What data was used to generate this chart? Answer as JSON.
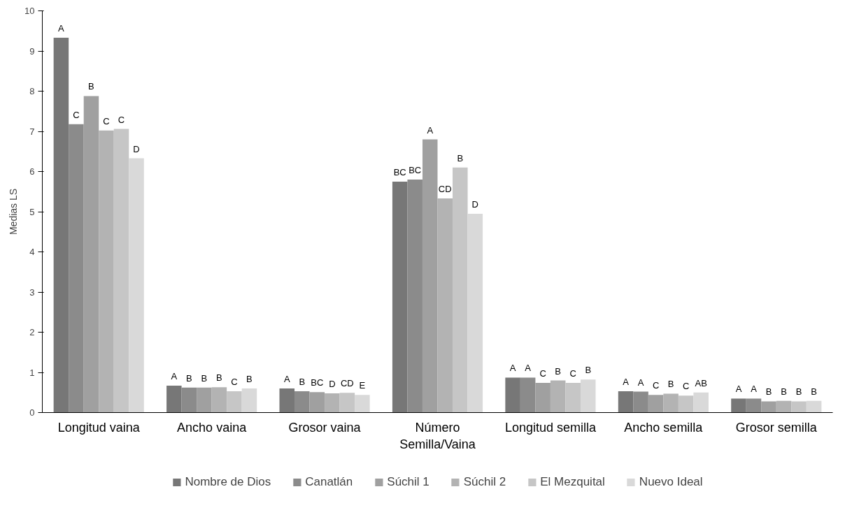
{
  "chart_data": {
    "type": "bar",
    "ylabel": "Medias LS",
    "categories": [
      "Longitud vaina",
      "Ancho vaina",
      "Grosor vaina",
      "Número\nSemilla/Vaina",
      "Longitud semilla",
      "Ancho semilla",
      "Grosor semilla"
    ],
    "series": [
      {
        "name": "Nombre de Dios",
        "color": "#777777",
        "values": [
          9.33,
          0.67,
          0.6,
          5.75,
          0.87,
          0.53,
          0.35
        ],
        "value_labels": [
          "A",
          "A",
          "A",
          "BC",
          "A",
          "A",
          "A"
        ]
      },
      {
        "name": "Canatlán",
        "color": "#8b8b8b",
        "values": [
          7.18,
          0.62,
          0.53,
          5.8,
          0.87,
          0.52,
          0.35
        ],
        "value_labels": [
          "C",
          "B",
          "B",
          "BC",
          "A",
          "A",
          "A"
        ]
      },
      {
        "name": "Súchil 1",
        "color": "#a0a0a0",
        "values": [
          7.88,
          0.62,
          0.51,
          6.8,
          0.74,
          0.44,
          0.28
        ],
        "value_labels": [
          "B",
          "B",
          "BC",
          "A",
          "C",
          "C",
          "B"
        ]
      },
      {
        "name": "Súchil 2",
        "color": "#b3b3b3",
        "values": [
          7.02,
          0.63,
          0.48,
          5.33,
          0.8,
          0.47,
          0.29
        ],
        "value_labels": [
          "C",
          "B",
          "D",
          "CD",
          "B",
          "B",
          "B"
        ]
      },
      {
        "name": "El Mezquital",
        "color": "#c6c6c6",
        "values": [
          7.06,
          0.53,
          0.49,
          6.1,
          0.74,
          0.42,
          0.28
        ],
        "value_labels": [
          "C",
          "C",
          "CD",
          "B",
          "C",
          "C",
          "B"
        ]
      },
      {
        "name": "Nuevo Ideal",
        "color": "#d9d9d9",
        "values": [
          6.33,
          0.6,
          0.44,
          4.95,
          0.82,
          0.5,
          0.29
        ],
        "value_labels": [
          "D",
          "B",
          "E",
          "D",
          "B",
          "AB",
          "B"
        ]
      }
    ],
    "ylim": [
      0,
      10
    ],
    "yticks": [
      0,
      1,
      2,
      3,
      4,
      5,
      6,
      7,
      8,
      9,
      10
    ],
    "grid": false,
    "legend": "bottom"
  }
}
